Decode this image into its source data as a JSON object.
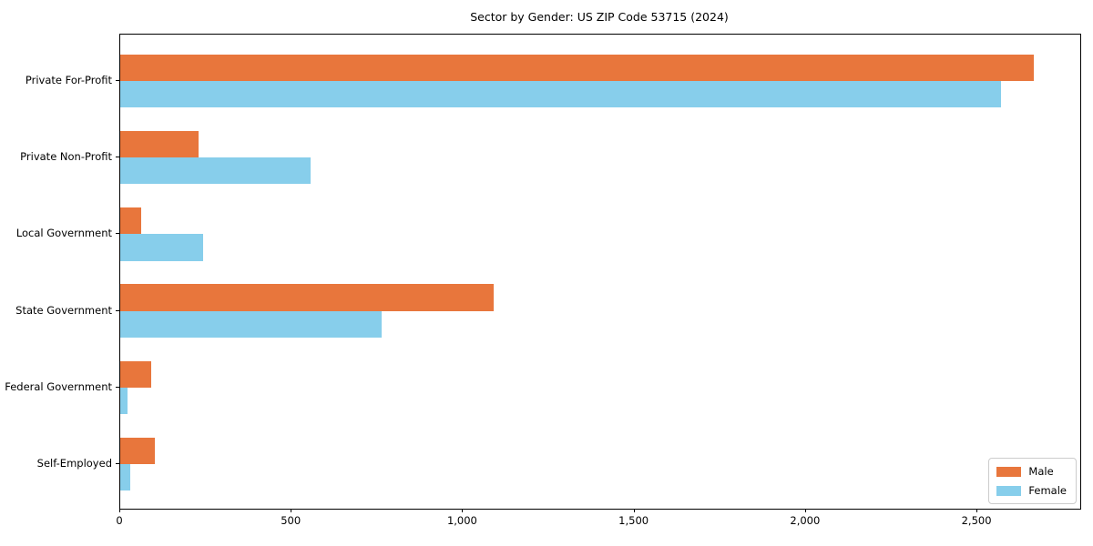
{
  "chart_data": {
    "type": "bar",
    "orientation": "horizontal",
    "title": "Sector by Gender: US ZIP Code 53715 (2024)",
    "categories": [
      "Private For-Profit",
      "Private Non-Profit",
      "Local Government",
      "State Government",
      "Federal Government",
      "Self-Employed"
    ],
    "series": [
      {
        "name": "Male",
        "color": "#E8763C",
        "values": [
          2665,
          228,
          62,
          1088,
          90,
          100
        ]
      },
      {
        "name": "Female",
        "color": "#87CEEB",
        "values": [
          2570,
          556,
          243,
          762,
          20,
          30
        ]
      }
    ],
    "xlabel": "",
    "ylabel": "",
    "xlim": [
      0,
      2800
    ],
    "xticks": [
      0,
      500,
      1000,
      1500,
      2000,
      2500
    ],
    "xtick_labels": [
      "0",
      "500",
      "1,000",
      "1,500",
      "2,000",
      "2,500"
    ],
    "grid": false,
    "legend_position": "lower right",
    "axis_color": "#000000",
    "background_color": "#ffffff"
  }
}
